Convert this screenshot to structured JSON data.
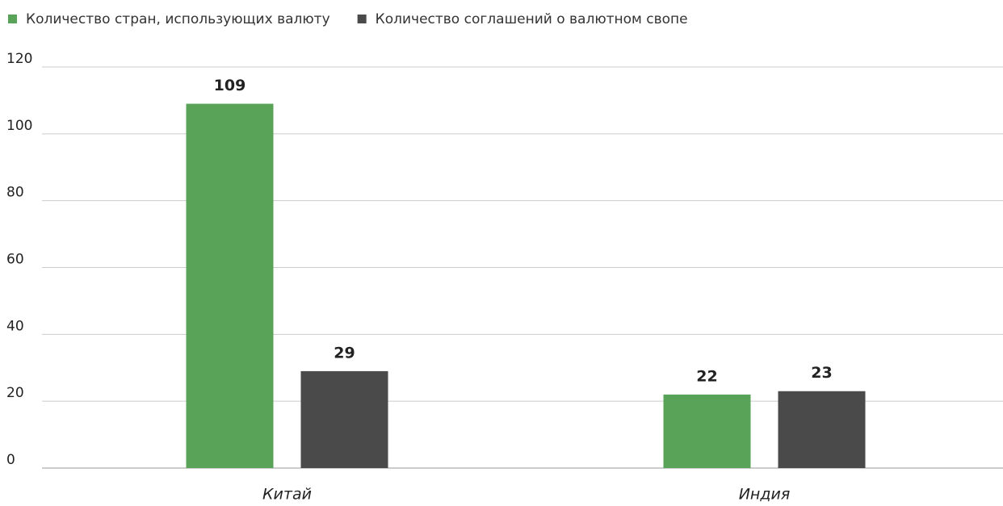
{
  "chart_data": {
    "type": "bar",
    "categories": [
      "Китай",
      "Индия"
    ],
    "series": [
      {
        "name": "Количество стран, использующих валюту",
        "color": "#58a358",
        "values": [
          109,
          22
        ]
      },
      {
        "name": "Количество соглашений о валютном свопе",
        "color": "#4a4a4a",
        "values": [
          29,
          23
        ]
      }
    ],
    "ylim": [
      0,
      120
    ],
    "yticks": [
      0,
      20,
      40,
      60,
      80,
      100,
      120
    ],
    "grid": true,
    "legend": "top-left"
  }
}
